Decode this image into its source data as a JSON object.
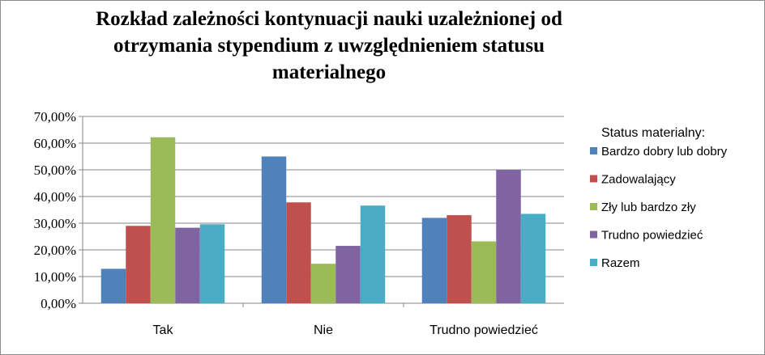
{
  "chart_data": {
    "type": "bar",
    "title": "Rozkład zależności kontynuacji nauki uzależnionej od otrzymania stypendium z uwzględnieniem statusu materialnego",
    "categories": [
      "Tak",
      "Nie",
      "Trudno powiedzieć"
    ],
    "series": [
      {
        "name": "Bardzo dobry lub dobry",
        "color": "#4f81bd",
        "values": [
          12.9,
          55.0,
          32.0
        ]
      },
      {
        "name": "Zadowalający",
        "color": "#c0504d",
        "values": [
          29.0,
          37.8,
          33.0
        ]
      },
      {
        "name": "Zły lub bardzo zły",
        "color": "#9bbb59",
        "values": [
          62.2,
          14.8,
          23.2
        ]
      },
      {
        "name": "Trudno powiedzieć",
        "color": "#8064a2",
        "values": [
          28.3,
          21.5,
          50.0
        ]
      },
      {
        "name": "Razem",
        "color": "#4bacc6",
        "values": [
          29.6,
          36.6,
          33.5
        ]
      }
    ],
    "ylim": [
      0,
      70
    ],
    "yticks": [
      "0,00%",
      "10,00%",
      "20,00%",
      "30,00%",
      "40,00%",
      "50,00%",
      "60,00%",
      "70,00%"
    ],
    "grid": true,
    "legend_title": "Status materialny:",
    "legend_position": "right"
  }
}
